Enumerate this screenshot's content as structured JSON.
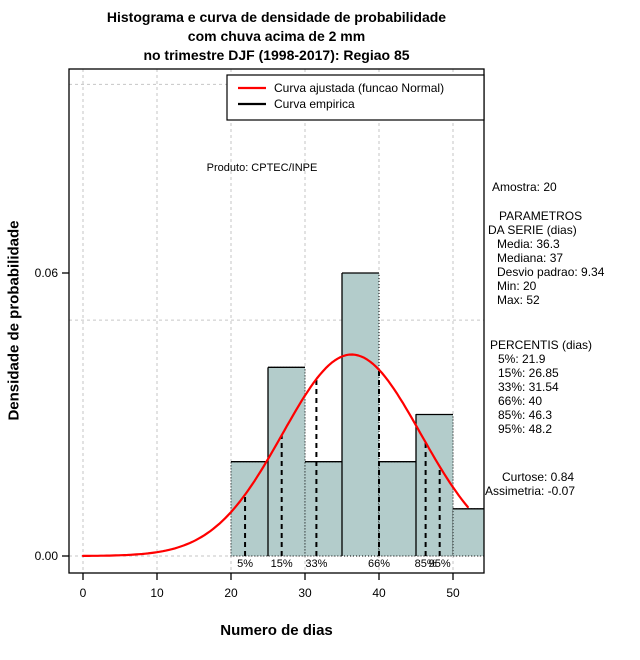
{
  "chart_data": {
    "type": "bar",
    "subtype": "histogram_with_density_curve",
    "title": "Histograma e curva de densidade de probabilidade com chuva acima de 2 mm no trimestre DJF (1998-2017): Regiao 85",
    "title_lines": [
      "Histograma e curva de densidade de probabilidade",
      "com chuva acima de 2 mm",
      "no trimestre DJF (1998-2017): Regiao 85"
    ],
    "xlabel": "Numero de dias",
    "ylabel": "Densidade de probabilidade",
    "annotation": "Produto: CPTEC/INPE",
    "xlim": [
      -2,
      54.2
    ],
    "ylim": [
      -0.004,
      0.103
    ],
    "x_ticks": [
      0,
      10,
      20,
      30,
      40,
      50
    ],
    "y_ticks": [
      {
        "value": 0.0,
        "label": "0.00"
      },
      {
        "value": 0.06,
        "label": "0.06"
      }
    ],
    "grid_y": [
      0.0,
      0.05,
      0.1
    ],
    "grid_on": true,
    "histogram": {
      "bin_edges": [
        20,
        25,
        30,
        35,
        40,
        45,
        50,
        55
      ],
      "densities": [
        0.02,
        0.04,
        0.02,
        0.06,
        0.02,
        0.03,
        0.01
      ],
      "counts": [
        2,
        4,
        2,
        6,
        2,
        3,
        1
      ],
      "fill_color": "#B3CCCB",
      "border_color": "#000000"
    },
    "normal_curve": {
      "mean": 36.3,
      "sd": 9.34,
      "color": "#FF0000",
      "x_start": 0,
      "x_end": 52.3
    },
    "percentile_lines": [
      {
        "label": "5%",
        "value": 21.9
      },
      {
        "label": "15%",
        "value": 26.85
      },
      {
        "label": "33%",
        "value": 31.54
      },
      {
        "label": "66%",
        "value": 40
      },
      {
        "label": "85%",
        "value": 46.3
      },
      {
        "label": "95%",
        "value": 48.2
      }
    ],
    "legend": {
      "position": "top-right",
      "entries": [
        {
          "label": "Curva ajustada (funcao Normal)",
          "color": "#FF0000"
        },
        {
          "label": "Curva empirica",
          "color": "#000000"
        }
      ]
    },
    "grid_color": "#C6C6C6"
  },
  "stats_panel": {
    "amostra": "Amostra: 20",
    "parametros_line1": "PARAMETROS",
    "parametros_line2": "DA SERIE (dias)",
    "media": "Media: 36.3",
    "mediana": "Mediana: 37",
    "desvio_padrao": "Desvio padrao: 9.34",
    "min": "Min: 20",
    "max": "Max: 52",
    "percentis_title": "PERCENTIS (dias)",
    "p5": "5%: 21.9",
    "p15": "15%: 26.85",
    "p33": "33%: 31.54",
    "p66": "66%: 40",
    "p85": "85%: 46.3",
    "p95": "95%: 48.2",
    "curtose": "Curtose: 0.84",
    "assimetria": "Assimetria: -0.07"
  }
}
